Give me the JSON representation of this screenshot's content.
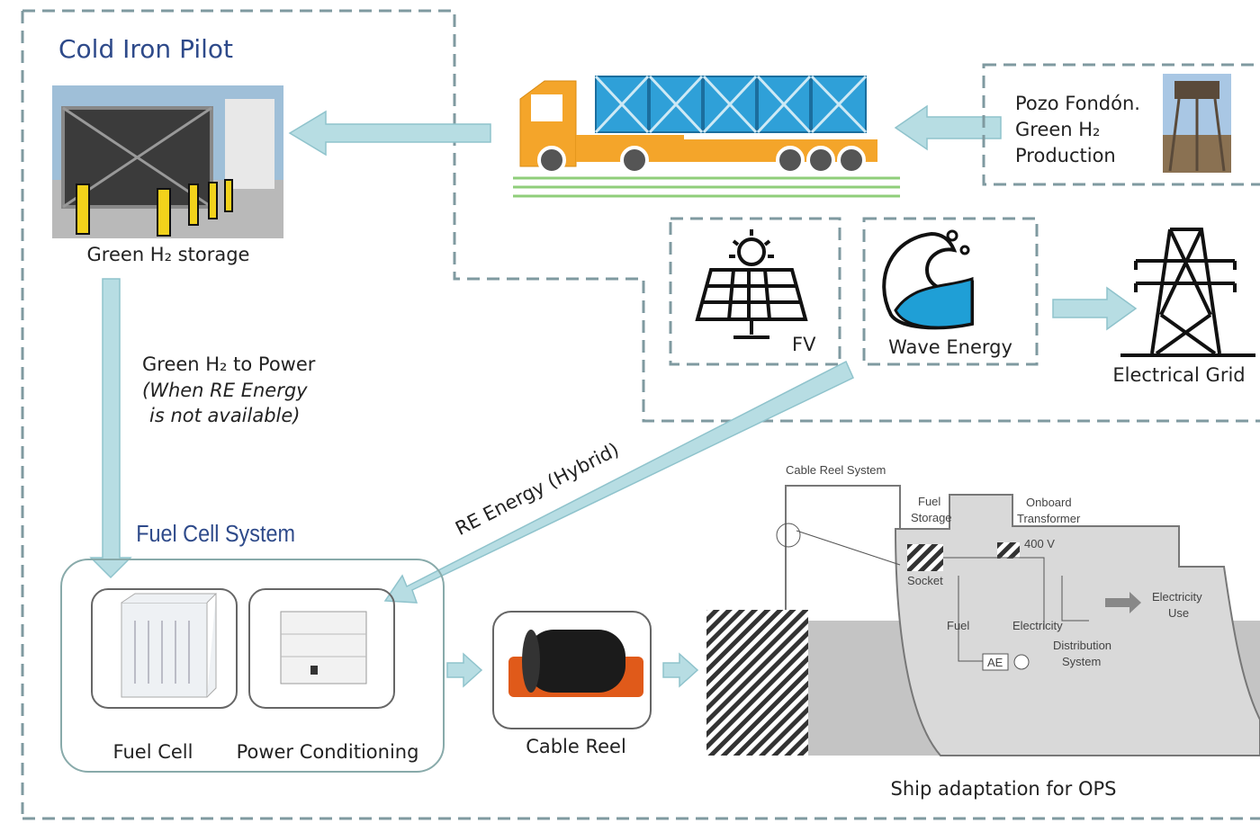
{
  "header": {
    "title": "Cold Iron Pilot"
  },
  "storage": {
    "label": "Green H₂ storage"
  },
  "production": {
    "lines": [
      "Pozo Fondón.",
      "Green H₂",
      "Production"
    ]
  },
  "renewables": {
    "fv": "FV",
    "wave": "Wave Energy",
    "grid": "Electrical Grid"
  },
  "h2_to_power": {
    "title": "Green H₂ to Power",
    "note": [
      "(When RE Energy",
      "is not available)"
    ]
  },
  "re_link": {
    "label": "RE Energy (Hybrid)"
  },
  "fuel_cell_system": {
    "title": "Fuel Cell System",
    "fuel_cell": "Fuel Cell",
    "power_conditioning": "Power Conditioning"
  },
  "cable_reel": {
    "label": "Cable Reel"
  },
  "ship": {
    "caption": "Ship adaptation for OPS",
    "labels": {
      "cable_reel_system": "Cable Reel System",
      "fuel_storage": [
        "Fuel",
        "Storage"
      ],
      "onboard_transformer": [
        "Onboard",
        "Transformer"
      ],
      "voltage": "400 V",
      "socket": "Socket",
      "fuel": "Fuel",
      "electricity": "Electricity",
      "distribution": [
        "Distribution",
        "System"
      ],
      "electricity_use": [
        "Electricity",
        "Use"
      ],
      "ae": "AE"
    }
  }
}
